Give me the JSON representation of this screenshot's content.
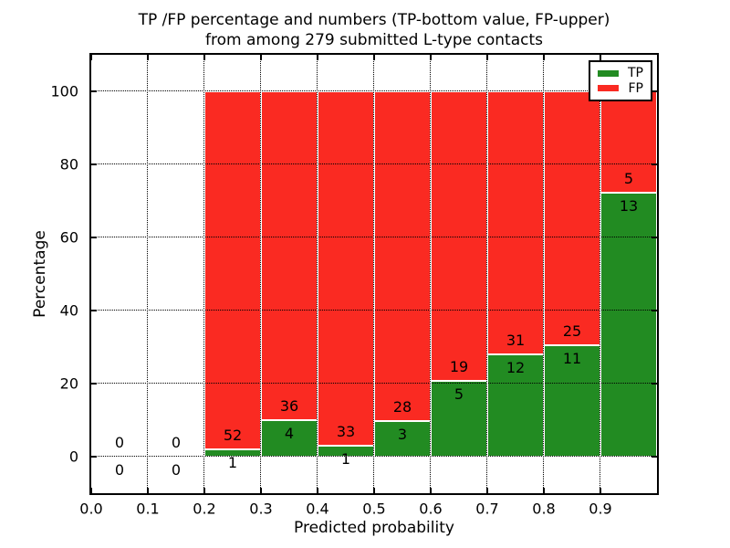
{
  "title": {
    "line1": "TP /FP percentage and numbers (TP-bottom value, FP-upper)",
    "line2": "from among 279 submitted L-type contacts"
  },
  "legend": {
    "position": "upper right",
    "items": [
      {
        "label": "TP",
        "color": "#228b22"
      },
      {
        "label": "FP",
        "color": "#fa2a22"
      }
    ]
  },
  "chart_data": {
    "type": "bar",
    "stacked": true,
    "title": "TP /FP percentage and numbers (TP-bottom value, FP-upper) from among 279 submitted L-type contacts",
    "xlabel": "Predicted probability",
    "ylabel": "Percentage",
    "xlim": [
      0.0,
      1.0
    ],
    "ylim": [
      -10,
      110
    ],
    "xticks": [
      0.0,
      0.1,
      0.2,
      0.3,
      0.4,
      0.5,
      0.6,
      0.7,
      0.8,
      0.9
    ],
    "xtick_labels": [
      "0.0",
      "0.1",
      "0.2",
      "0.3",
      "0.4",
      "0.5",
      "0.6",
      "0.7",
      "0.8",
      "0.9"
    ],
    "yticks": [
      0,
      20,
      40,
      60,
      80,
      100
    ],
    "grid": "dotted",
    "legend_position": "upper right",
    "total_contacts": 279,
    "bin_width": 0.1,
    "series": [
      {
        "name": "TP",
        "color": "#228b22"
      },
      {
        "name": "FP",
        "color": "#fa2a22"
      }
    ],
    "bins": [
      {
        "x0": 0.0,
        "x1": 0.1,
        "tp": 0,
        "fp": 0,
        "tp_pct": null,
        "fp_pct": null
      },
      {
        "x0": 0.1,
        "x1": 0.2,
        "tp": 0,
        "fp": 0,
        "tp_pct": null,
        "fp_pct": null
      },
      {
        "x0": 0.2,
        "x1": 0.3,
        "tp": 1,
        "fp": 52,
        "tp_pct": 1.89,
        "fp_pct": 98.11
      },
      {
        "x0": 0.3,
        "x1": 0.4,
        "tp": 4,
        "fp": 36,
        "tp_pct": 10.0,
        "fp_pct": 90.0
      },
      {
        "x0": 0.4,
        "x1": 0.5,
        "tp": 1,
        "fp": 33,
        "tp_pct": 2.94,
        "fp_pct": 97.06
      },
      {
        "x0": 0.5,
        "x1": 0.6,
        "tp": 3,
        "fp": 28,
        "tp_pct": 9.68,
        "fp_pct": 90.32
      },
      {
        "x0": 0.6,
        "x1": 0.7,
        "tp": 5,
        "fp": 19,
        "tp_pct": 20.83,
        "fp_pct": 79.17
      },
      {
        "x0": 0.7,
        "x1": 0.8,
        "tp": 12,
        "fp": 31,
        "tp_pct": 27.91,
        "fp_pct": 72.09
      },
      {
        "x0": 0.8,
        "x1": 0.9,
        "tp": 11,
        "fp": 25,
        "tp_pct": 30.56,
        "fp_pct": 69.44
      },
      {
        "x0": 0.9,
        "x1": 1.0,
        "tp": 13,
        "fp": 5,
        "tp_pct": 72.22,
        "fp_pct": 27.78
      }
    ]
  }
}
